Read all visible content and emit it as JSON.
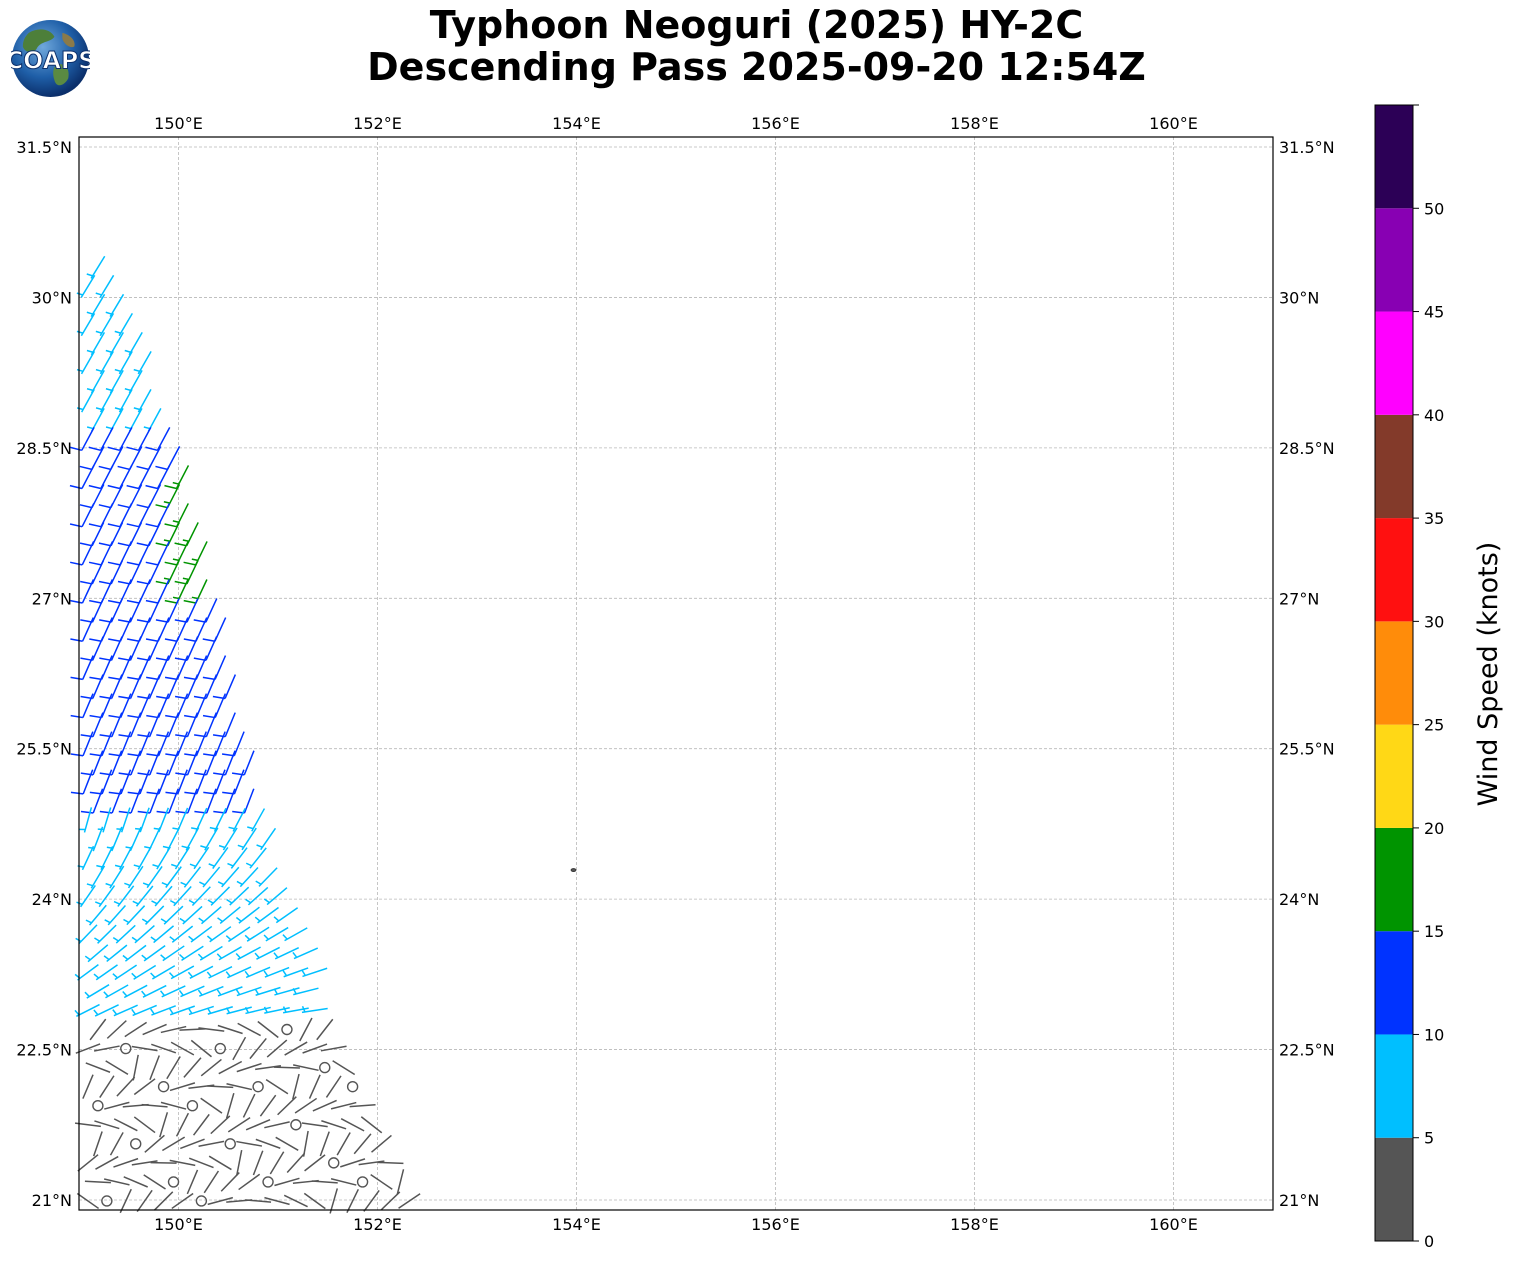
{
  "title_line1": "Typhoon Neoguri (2025) HY-2C",
  "title_line2": "Descending Pass 2025-09-20 12:54Z",
  "logo_text": "COAPS",
  "map": {
    "lon_range": [
      149.0,
      161.0
    ],
    "lat_range": [
      20.9,
      31.6
    ],
    "lon_ticks": [
      {
        "value": 150,
        "label": "150°E"
      },
      {
        "value": 152,
        "label": "152°E"
      },
      {
        "value": 154,
        "label": "154°E"
      },
      {
        "value": 156,
        "label": "156°E"
      },
      {
        "value": 158,
        "label": "158°E"
      },
      {
        "value": 160,
        "label": "160°E"
      }
    ],
    "lat_ticks": [
      {
        "value": 31.5,
        "label": "31.5°N"
      },
      {
        "value": 30,
        "label": "30°N"
      },
      {
        "value": 28.5,
        "label": "28.5°N"
      },
      {
        "value": 27,
        "label": "27°N"
      },
      {
        "value": 25.5,
        "label": "25.5°N"
      },
      {
        "value": 24,
        "label": "24°N"
      },
      {
        "value": 22.5,
        "label": "22.5°N"
      },
      {
        "value": 21,
        "label": "21°N"
      }
    ],
    "gridlines": true,
    "island": {
      "lon": 153.97,
      "lat": 24.29
    }
  },
  "colorbar": {
    "label": "Wind Speed (knots)",
    "bounds": [
      0,
      5,
      10,
      15,
      20,
      25,
      30,
      35,
      40,
      45,
      50,
      55
    ],
    "tick_values": [
      0,
      5,
      10,
      15,
      20,
      25,
      30,
      35,
      40,
      45,
      50
    ],
    "tick_labels": [
      "0",
      "5",
      "10",
      "15",
      "20",
      "25",
      "30",
      "35",
      "40",
      "45",
      "50"
    ],
    "colors": [
      "#555555",
      "#00bfff",
      "#0033ff",
      "#009400",
      "#ffd816",
      "#ff8c0a",
      "#ff1010",
      "#833a2a",
      "#ff00ff",
      "#8800b3",
      "#2c0056"
    ]
  },
  "chart_data": {
    "type": "wind_barbs",
    "swath_description_free": true,
    "regions": [
      {
        "lat_range": [
          28.6,
          30.4
        ],
        "speed_kt": 8
      },
      {
        "lat_range": [
          24.9,
          28.6
        ],
        "speed_kt": 12
      },
      {
        "lat_range": [
          27.0,
          28.3
        ],
        "lon_range": [
          149.9,
          150.7
        ],
        "speed_kt": 17
      },
      {
        "lat_range": [
          22.8,
          24.9
        ],
        "speed_kt": 8
      },
      {
        "lat_range": [
          20.9,
          22.8
        ],
        "speed_kt": 3
      }
    ]
  }
}
